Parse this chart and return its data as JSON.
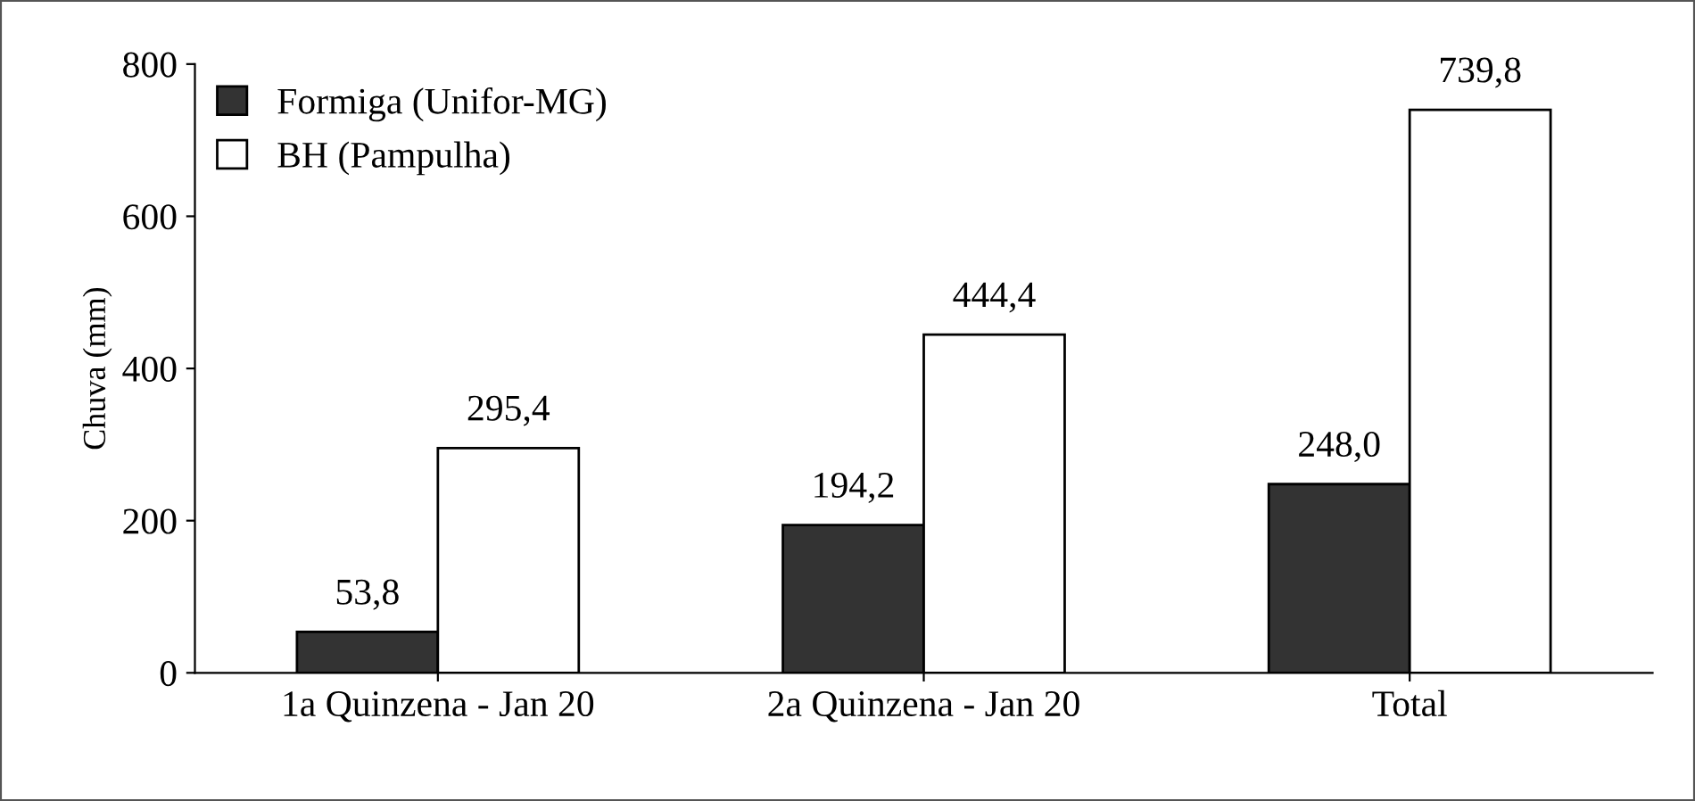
{
  "chart_data": {
    "type": "bar",
    "ylabel": "Chuva (mm)",
    "categories": [
      "1a Quinzena - Jan 20",
      "2a Quinzena - Jan 20",
      "Total"
    ],
    "series": [
      {
        "name": "Formiga (Unifor-MG)",
        "color": "#333333",
        "values": [
          53.8,
          194.2,
          248.0
        ],
        "value_labels": [
          "53,8",
          "194,2",
          "248,0"
        ]
      },
      {
        "name": "BH (Pampulha)",
        "color": "#ffffff",
        "values": [
          295.4,
          444.4,
          739.8
        ],
        "value_labels": [
          "295,4",
          "444,4",
          "739,8"
        ]
      }
    ],
    "ylim": [
      0,
      800
    ],
    "yticks": [
      0,
      200,
      400,
      600,
      800
    ],
    "grid": false,
    "legend": "top left"
  }
}
